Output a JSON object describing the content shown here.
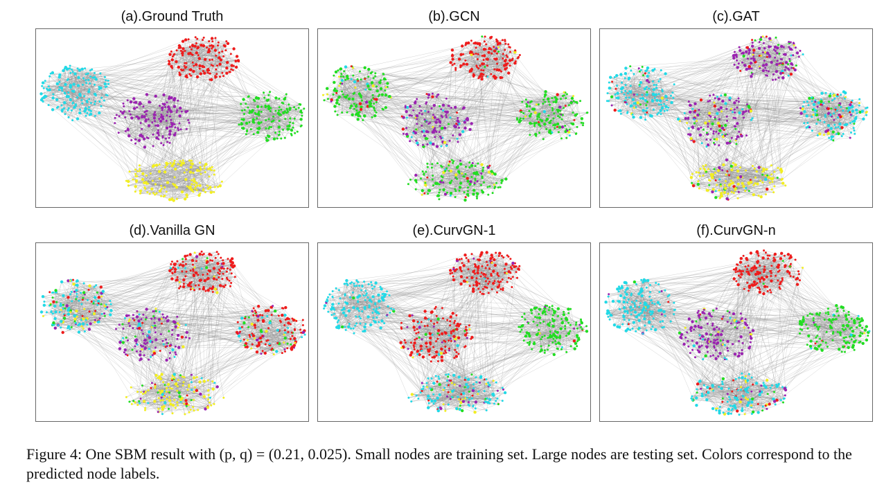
{
  "figure": {
    "panels": [
      {
        "title": "(a).Ground Truth",
        "cluster_colors": [
          "cyan",
          "red",
          "purple",
          "green",
          "yellow"
        ],
        "mix": [
          0,
          0,
          0,
          0,
          0
        ]
      },
      {
        "title": "(b).GCN",
        "cluster_colors": [
          "green",
          "red",
          "purple",
          "green",
          "green"
        ],
        "mix": [
          0.25,
          0.1,
          0.35,
          0.25,
          0.2
        ]
      },
      {
        "title": "(c).GAT",
        "cluster_colors": [
          "cyan",
          "purple",
          "purple",
          "cyan",
          "yellow"
        ],
        "mix": [
          0.2,
          0.3,
          0.45,
          0.45,
          0.35
        ]
      },
      {
        "title": "(d).Vanilla GN",
        "cluster_colors": [
          "cyan",
          "red",
          "purple",
          "red",
          "yellow"
        ],
        "mix": [
          0.55,
          0.12,
          0.45,
          0.5,
          0.35
        ]
      },
      {
        "title": "(e).CurvGN-1",
        "cluster_colors": [
          "cyan",
          "red",
          "red",
          "green",
          "cyan"
        ],
        "mix": [
          0.05,
          0.08,
          0.3,
          0.08,
          0.45
        ]
      },
      {
        "title": "(f).CurvGN-n",
        "cluster_colors": [
          "cyan",
          "red",
          "purple",
          "green",
          "cyan"
        ],
        "mix": [
          0.05,
          0.05,
          0.3,
          0.1,
          0.45
        ]
      }
    ],
    "colors": {
      "cyan": "#22d9e6",
      "red": "#ee1c1c",
      "purple": "#9a23b0",
      "green": "#22dd22",
      "yellow": "#f2ee22",
      "edge": "#8c8c8c",
      "frame": "#666666"
    },
    "caption": {
      "prefix": "Figure 4: One SBM result with ",
      "math": "(p, q) = (0.21, 0.025)",
      "suffix": ". Small nodes are training set. Large nodes are testing set. Colors correspond to the predicted node labels."
    }
  }
}
